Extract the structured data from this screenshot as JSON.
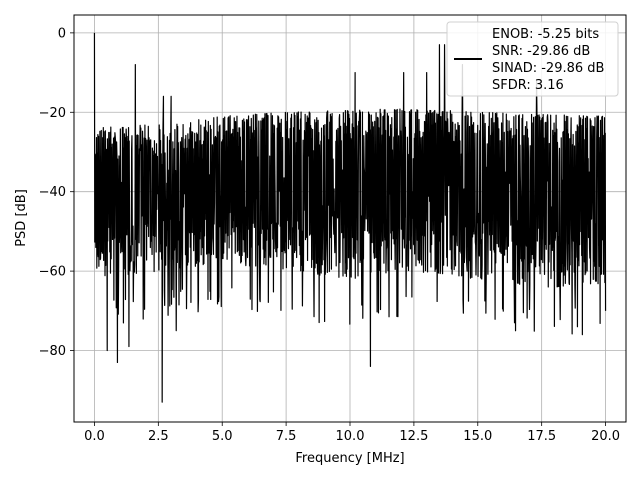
{
  "chart_data": {
    "type": "line",
    "title": "",
    "xlabel": "Frequency [MHz]",
    "ylabel": "PSD [dB]",
    "xlim": [
      -0.8,
      20.8
    ],
    "ylim": [
      -98,
      4.5
    ],
    "grid": true,
    "legend_position": "top-right",
    "x_ticks": [
      0.0,
      2.5,
      5.0,
      7.5,
      10.0,
      12.5,
      15.0,
      17.5,
      20.0
    ],
    "x_tick_labels": [
      "0.0",
      "2.5",
      "5.0",
      "7.5",
      "10.0",
      "12.5",
      "15.0",
      "17.5",
      "20.0"
    ],
    "y_ticks": [
      0,
      -20,
      -40,
      -60,
      -80
    ],
    "y_tick_labels": [
      "0",
      "−20",
      "−40",
      "−60",
      "−80"
    ],
    "line_color": "#000000",
    "legend": [
      "ENOB: -5.25 bits",
      "SNR: -29.86 dB",
      "SINAD: -29.86 dB",
      "SFDR: 3.16"
    ],
    "series": [
      {
        "x_range": [
          0,
          20
        ],
        "num_points": 1500,
        "noise_upper_envelope": [
          [
            0,
            -24
          ],
          [
            2.5,
            -23
          ],
          [
            5,
            -21
          ],
          [
            7.5,
            -20
          ],
          [
            10,
            -19.5
          ],
          [
            12.5,
            -19
          ],
          [
            15,
            -20
          ],
          [
            17.5,
            -20.5
          ],
          [
            20,
            -21
          ]
        ],
        "noise_lower_envelope": [
          [
            0,
            -62
          ],
          [
            2.5,
            -60
          ],
          [
            5,
            -58
          ],
          [
            7.5,
            -60
          ],
          [
            10,
            -62
          ],
          [
            12.5,
            -60
          ],
          [
            15,
            -62
          ],
          [
            17.5,
            -64
          ],
          [
            20,
            -64
          ]
        ],
        "peaks": [
          {
            "x": 0.0,
            "y": 0
          },
          {
            "x": 1.6,
            "y": -8
          },
          {
            "x": 2.7,
            "y": -16
          },
          {
            "x": 3.0,
            "y": -16
          },
          {
            "x": 10.2,
            "y": -10
          },
          {
            "x": 12.1,
            "y": -10
          },
          {
            "x": 13.0,
            "y": -10
          },
          {
            "x": 13.5,
            "y": -3
          },
          {
            "x": 13.7,
            "y": -3
          },
          {
            "x": 14.4,
            "y": -8
          },
          {
            "x": 17.3,
            "y": -12
          }
        ],
        "dips": [
          {
            "x": 0.5,
            "y": -80
          },
          {
            "x": 0.9,
            "y": -83
          },
          {
            "x": 1.35,
            "y": -79
          },
          {
            "x": 2.65,
            "y": -93
          },
          {
            "x": 3.2,
            "y": -75
          },
          {
            "x": 10.8,
            "y": -84
          },
          {
            "x": 18.9,
            "y": -74
          }
        ]
      }
    ]
  }
}
